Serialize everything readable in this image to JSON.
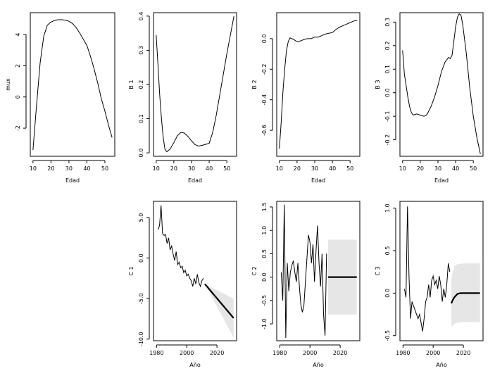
{
  "chart_data": [
    {
      "id": "p_mux",
      "type": "line",
      "xlabel": "Edad",
      "ylabel": "mux",
      "xlim": [
        8.5,
        55.5
      ],
      "ylim": [
        -3.8,
        5.4
      ],
      "xticks": [
        10,
        20,
        30,
        40,
        50
      ],
      "yticks": [
        -2,
        0,
        2,
        4
      ],
      "series": [
        {
          "x": [
            10,
            12,
            14,
            16,
            18,
            20,
            22,
            24,
            26,
            28,
            30,
            32,
            34,
            36,
            38,
            40,
            42,
            44,
            46,
            48,
            50,
            52,
            54
          ],
          "y": [
            -3.4,
            -0.5,
            2.2,
            3.9,
            4.6,
            4.8,
            4.9,
            4.95,
            4.95,
            4.92,
            4.85,
            4.7,
            4.45,
            4.1,
            3.7,
            3.3,
            2.6,
            1.8,
            0.9,
            -0.1,
            -0.9,
            -1.8,
            -2.6
          ]
        }
      ]
    },
    {
      "id": "p_b1",
      "type": "line",
      "xlabel": "Edad",
      "ylabel": "B 1",
      "xlim": [
        8.5,
        55.5
      ],
      "ylim": [
        -0.01,
        0.41
      ],
      "xticks": [
        10,
        20,
        30,
        40,
        50
      ],
      "yticks": [
        0.0,
        0.1,
        0.2,
        0.3,
        0.4
      ],
      "series": [
        {
          "x": [
            10,
            11,
            12,
            13,
            14,
            15,
            16,
            18,
            20,
            22,
            24,
            26,
            28,
            30,
            32,
            34,
            36,
            38,
            40,
            42,
            44,
            46,
            48,
            50,
            52,
            54
          ],
          "y": [
            0.345,
            0.26,
            0.17,
            0.1,
            0.045,
            0.01,
            0.003,
            0.012,
            0.03,
            0.05,
            0.06,
            0.058,
            0.048,
            0.035,
            0.024,
            0.02,
            0.022,
            0.025,
            0.028,
            0.06,
            0.11,
            0.17,
            0.23,
            0.29,
            0.345,
            0.4
          ]
        }
      ]
    },
    {
      "id": "p_b2",
      "type": "line",
      "xlabel": "Edad",
      "ylabel": "B 2",
      "xlim": [
        8.5,
        55.5
      ],
      "ylim": [
        -0.77,
        0.17
      ],
      "xticks": [
        10,
        20,
        30,
        40,
        50
      ],
      "yticks": [
        -0.6,
        -0.4,
        -0.2,
        0.0
      ],
      "series": [
        {
          "x": [
            10,
            11,
            12,
            13,
            14,
            15,
            16,
            18,
            20,
            22,
            24,
            26,
            28,
            30,
            32,
            34,
            36,
            38,
            40,
            42,
            44,
            46,
            48,
            50,
            52,
            54
          ],
          "y": [
            -0.72,
            -0.55,
            -0.35,
            -0.2,
            -0.08,
            -0.02,
            0.005,
            -0.005,
            -0.02,
            -0.015,
            -0.005,
            0.0,
            0.0,
            0.01,
            0.01,
            0.02,
            0.03,
            0.035,
            0.04,
            0.06,
            0.075,
            0.085,
            0.095,
            0.105,
            0.115,
            0.12
          ]
        }
      ]
    },
    {
      "id": "p_b3",
      "type": "line",
      "xlabel": "Edad",
      "ylabel": "B 3",
      "xlim": [
        8.5,
        55.5
      ],
      "ylim": [
        -0.27,
        0.34
      ],
      "xticks": [
        10,
        20,
        30,
        40,
        50
      ],
      "yticks": [
        -0.2,
        -0.1,
        0.0,
        0.1,
        0.2,
        0.3
      ],
      "series": [
        {
          "x": [
            10,
            11,
            12,
            13,
            14,
            15,
            16,
            18,
            20,
            22,
            23,
            24,
            26,
            28,
            30,
            32,
            34,
            36,
            37,
            38,
            39,
            40,
            41,
            42,
            43,
            44,
            46,
            48,
            50,
            52,
            54
          ],
          "y": [
            0.18,
            0.08,
            0.03,
            -0.02,
            -0.06,
            -0.085,
            -0.095,
            -0.09,
            -0.095,
            -0.1,
            -0.098,
            -0.09,
            -0.06,
            -0.02,
            0.03,
            0.09,
            0.13,
            0.15,
            0.145,
            0.16,
            0.22,
            0.28,
            0.32,
            0.335,
            0.33,
            0.29,
            0.17,
            0.02,
            -0.1,
            -0.19,
            -0.26
          ]
        }
      ]
    },
    {
      "id": "p_c1",
      "type": "line",
      "xlabel": "Año",
      "ylabel": "C 1",
      "xlim": [
        1978,
        2033
      ],
      "ylim": [
        -10.2,
        7.0
      ],
      "xticks": [
        1980,
        2000,
        2020
      ],
      "yticks": [
        -10,
        -5,
        0,
        5
      ],
      "series": [
        {
          "x": [
            1981,
            1982,
            1983,
            1984,
            1985,
            1986,
            1987,
            1988,
            1989,
            1990,
            1991,
            1992,
            1993,
            1994,
            1995,
            1996,
            1997,
            1998,
            1999,
            2000,
            2001,
            2002,
            2003,
            2004,
            2005,
            2006,
            2007,
            2008,
            2009,
            2010,
            2011
          ],
          "y": [
            3.5,
            4.0,
            6.5,
            3.0,
            2.8,
            2.9,
            1.8,
            2.5,
            1.0,
            1.5,
            0.5,
            -0.3,
            0.8,
            -0.8,
            -0.5,
            -1.2,
            -1.0,
            -1.8,
            -1.5,
            -2.2,
            -2.0,
            -2.5,
            -2.8,
            -3.5,
            -2.5,
            -3.2,
            -2.0,
            -3.0,
            -3.5,
            -2.8,
            -2.5
          ]
        },
        {
          "x": [
            2012,
            2031
          ],
          "y": [
            -3.2,
            -7.4
          ]
        }
      ],
      "band": {
        "x": [
          2012,
          2031
        ],
        "lower": [
          -3.2,
          -9.8
        ],
        "upper": [
          -3.2,
          -5.0
        ]
      }
    },
    {
      "id": "p_c2",
      "type": "line",
      "xlabel": "Año",
      "ylabel": "C 2",
      "xlim": [
        1978,
        2033
      ],
      "ylim": [
        -1.36,
        1.62
      ],
      "xticks": [
        1980,
        2000,
        2020
      ],
      "yticks": [
        -1.0,
        -0.5,
        0.0,
        0.5,
        1.0,
        1.5
      ],
      "series": [
        {
          "x": [
            1981,
            1982,
            1983,
            1984,
            1985,
            1986,
            1987,
            1988,
            1989,
            1990,
            1991,
            1992,
            1993,
            1994,
            1995,
            1996,
            1997,
            1998,
            1999,
            2000,
            2001,
            2002,
            2003,
            2004,
            2005,
            2006,
            2007,
            2008,
            2009,
            2010,
            2011
          ],
          "y": [
            0.1,
            -0.5,
            1.55,
            -1.3,
            0.3,
            -0.3,
            0.1,
            0.25,
            0.35,
            0.1,
            -0.1,
            0.3,
            -0.2,
            -0.6,
            -0.75,
            -0.6,
            -0.1,
            0.4,
            0.9,
            0.75,
            0.3,
            0.7,
            -0.1,
            0.55,
            1.1,
            0.3,
            -0.2,
            0.5,
            -0.8,
            -1.25,
            0.5
          ]
        },
        {
          "x": [
            2012,
            2031
          ],
          "y": [
            0.0,
            0.0
          ]
        }
      ],
      "band": {
        "x": [
          2012,
          2031
        ],
        "lower": [
          -0.8,
          -0.8
        ],
        "upper": [
          0.8,
          0.8
        ]
      }
    },
    {
      "id": "p_c3",
      "type": "line",
      "xlabel": "Año",
      "ylabel": "C 3",
      "xlim": [
        1978,
        2033
      ],
      "ylim": [
        -0.56,
        1.08
      ],
      "xticks": [
        1980,
        2000,
        2020
      ],
      "yticks": [
        -0.5,
        0.0,
        0.5,
        1.0
      ],
      "series": [
        {
          "x": [
            1981,
            1982,
            1983,
            1984,
            1985,
            1986,
            1987,
            1988,
            1989,
            1990,
            1991,
            1992,
            1993,
            1994,
            1995,
            1996,
            1997,
            1998,
            1999,
            2000,
            2001,
            2002,
            2003,
            2004,
            2005,
            2006,
            2007,
            2008,
            2009,
            2010,
            2011
          ],
          "y": [
            0.05,
            -0.05,
            1.02,
            0.2,
            -0.3,
            -0.1,
            -0.15,
            -0.2,
            -0.25,
            -0.3,
            -0.25,
            -0.35,
            -0.45,
            -0.3,
            -0.1,
            -0.05,
            0.1,
            -0.05,
            0.15,
            0.2,
            0.1,
            0.15,
            0.05,
            0.2,
            0.1,
            -0.1,
            0.05,
            -0.05,
            0.1,
            0.35,
            0.25
          ]
        },
        {
          "x": [
            2012,
            2013,
            2014,
            2015,
            2016,
            2018,
            2020,
            2025,
            2031
          ],
          "y": [
            -0.12,
            -0.08,
            -0.05,
            -0.03,
            -0.01,
            0.0,
            0.0,
            0.0,
            0.0
          ]
        }
      ],
      "band": {
        "x": [
          2012,
          2013,
          2014,
          2016,
          2020,
          2031
        ],
        "lower": [
          -0.4,
          -0.38,
          -0.36,
          -0.35,
          -0.34,
          -0.34
        ],
        "upper": [
          0.15,
          0.25,
          0.32,
          0.34,
          0.35,
          0.35
        ]
      }
    }
  ]
}
